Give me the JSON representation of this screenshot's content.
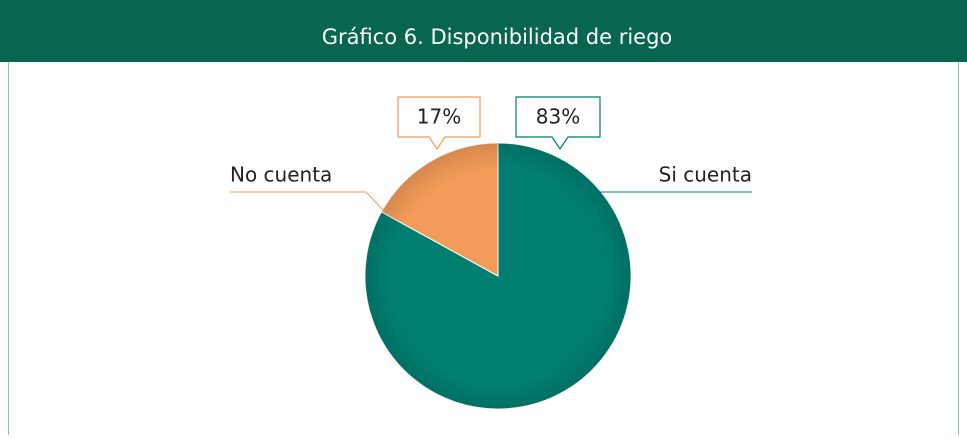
{
  "chart_data": {
    "type": "pie",
    "title": "Gráfico 6. Disponibilidad de riego",
    "categories": [
      "Si cuenta",
      "No cuenta"
    ],
    "values": [
      83,
      17
    ],
    "value_labels": [
      "83%",
      "17%"
    ],
    "colors": [
      "#007f70",
      "#f39b58"
    ]
  }
}
